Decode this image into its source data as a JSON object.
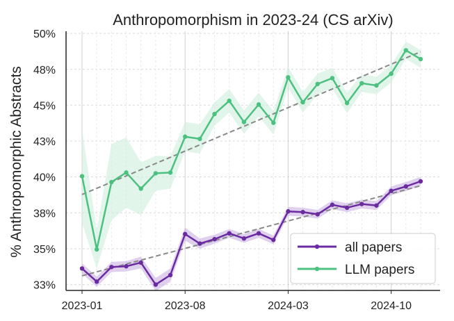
{
  "chart_data": {
    "type": "line",
    "title": "Anthropomorphism in 2023-24 (CS arXiv)",
    "xlabel": "",
    "ylabel": "% Anthropomorphic Abstracts",
    "x": [
      "2023-01",
      "2023-02",
      "2023-03",
      "2023-04",
      "2023-05",
      "2023-06",
      "2023-07",
      "2023-08",
      "2023-09",
      "2023-10",
      "2023-11",
      "2023-12",
      "2024-01",
      "2024-02",
      "2024-03",
      "2024-04",
      "2024-05",
      "2024-06",
      "2024-07",
      "2024-08",
      "2024-09",
      "2024-10",
      "2024-11",
      "2024-12"
    ],
    "xticks": [
      "2023-01",
      "2023-08",
      "2024-03",
      "2024-10"
    ],
    "ylim": [
      32.5,
      50.2
    ],
    "yticks": [
      {
        "value": 32.9,
        "label": "33%"
      },
      {
        "value": 35.35,
        "label": "35%"
      },
      {
        "value": 37.8,
        "label": "38%"
      },
      {
        "value": 40.25,
        "label": "40%"
      },
      {
        "value": 42.7,
        "label": "43%"
      },
      {
        "value": 45.15,
        "label": "45%"
      },
      {
        "value": 47.6,
        "label": "48%"
      },
      {
        "value": 50.05,
        "label": "50%"
      }
    ],
    "grid": true,
    "legend_position": "lower-right",
    "series": [
      {
        "name": "all papers",
        "color": "#6a2aa0",
        "band_color": "#c9b0e3",
        "values": [
          34.0,
          33.1,
          34.1,
          34.15,
          34.4,
          32.9,
          33.55,
          36.35,
          35.7,
          36.0,
          36.4,
          36.05,
          36.4,
          35.95,
          37.9,
          37.85,
          37.7,
          38.35,
          38.15,
          38.4,
          38.3,
          39.3,
          39.6,
          39.95
        ],
        "band": [
          0.35,
          0.35,
          0.35,
          0.35,
          0.4,
          0.45,
          0.45,
          0.45,
          0.35,
          0.3,
          0.3,
          0.3,
          0.3,
          0.3,
          0.3,
          0.3,
          0.3,
          0.3,
          0.3,
          0.3,
          0.3,
          0.3,
          0.3,
          0.3
        ],
        "trend": [
          33.5,
          39.65
        ]
      },
      {
        "name": "LLM papers",
        "color": "#4cc07e",
        "band_color": "#cfeedd",
        "values": [
          40.3,
          35.3,
          39.9,
          40.55,
          39.45,
          40.5,
          40.55,
          43.0,
          42.85,
          44.55,
          45.45,
          44.0,
          45.2,
          43.95,
          47.05,
          45.35,
          46.6,
          47.0,
          45.3,
          46.65,
          46.5,
          47.3,
          48.9,
          48.3
        ],
        "band": [
          3.2,
          1.3,
          2.6,
          2.4,
          1.8,
          1.2,
          1.1,
          1.0,
          1.0,
          0.8,
          0.8,
          0.8,
          0.8,
          0.8,
          0.7,
          0.7,
          0.7,
          0.7,
          0.7,
          0.6,
          0.6,
          0.6,
          0.6,
          0.6
        ],
        "trend": [
          39.05,
          48.8
        ]
      }
    ],
    "trend_color": "#888888"
  }
}
